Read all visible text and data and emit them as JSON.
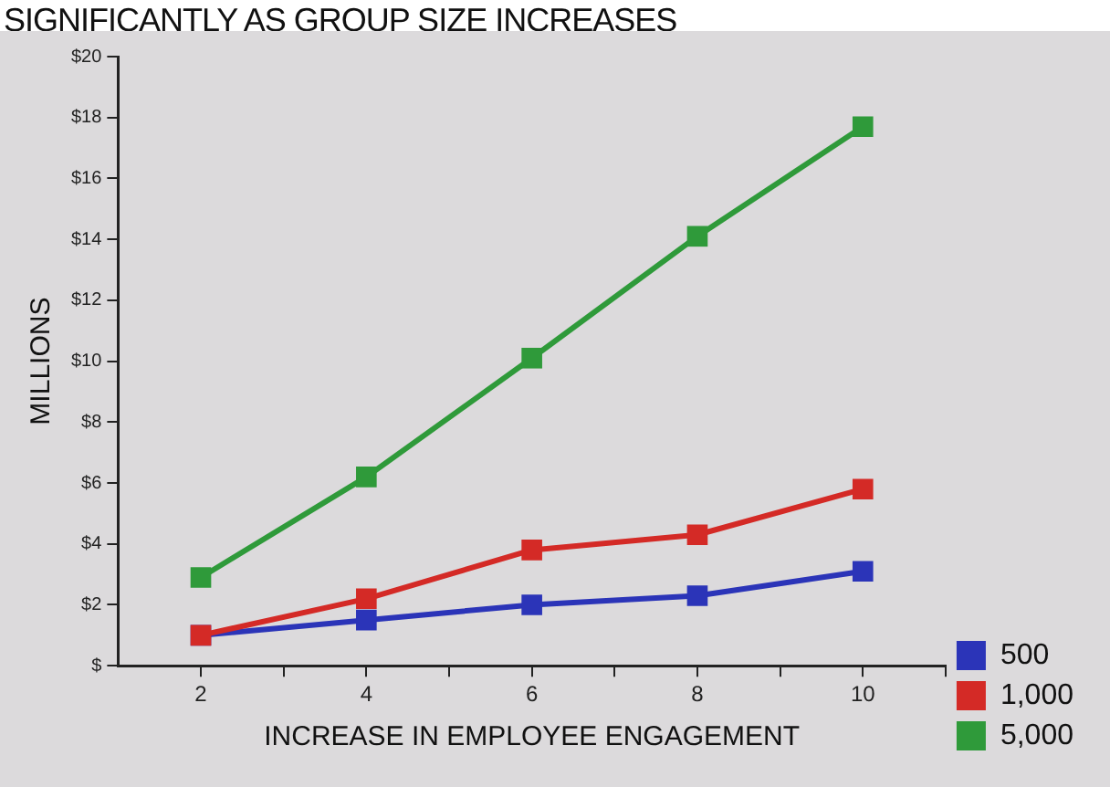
{
  "chart_data": {
    "type": "line",
    "title": "SIGNIFICANTLY AS GROUP SIZE INCREASES",
    "xlabel": "INCREASE IN EMPLOYEE ENGAGEMENT",
    "ylabel": "MILLIONS",
    "x": [
      2,
      4,
      6,
      8,
      10
    ],
    "series": [
      {
        "name": "500",
        "color": "#2b34b8",
        "values": [
          1.0,
          1.5,
          2.0,
          2.3,
          3.1
        ]
      },
      {
        "name": "1,000",
        "color": "#d42a26",
        "values": [
          1.0,
          2.2,
          3.8,
          4.3,
          5.8
        ]
      },
      {
        "name": "5,000",
        "color": "#2f9a3a",
        "values": [
          2.9,
          6.2,
          10.1,
          14.1,
          17.7
        ]
      }
    ],
    "xlim": [
      1,
      11
    ],
    "xticks": [
      2,
      {
        "value": 3,
        "label": null
      },
      4,
      {
        "value": 5,
        "label": null
      },
      6,
      {
        "value": 7,
        "label": null
      },
      8,
      {
        "value": 9,
        "label": null
      },
      10,
      {
        "value": 11,
        "label": null
      }
    ],
    "ylim": [
      0,
      20
    ],
    "yticks": [
      {
        "value": 0,
        "label": "$"
      },
      {
        "value": 2,
        "label": "$2"
      },
      {
        "value": 4,
        "label": "$4"
      },
      {
        "value": 6,
        "label": "$6"
      },
      {
        "value": 8,
        "label": "$8"
      },
      {
        "value": 10,
        "label": "$10"
      },
      {
        "value": 12,
        "label": "$12"
      },
      {
        "value": 14,
        "label": "$14"
      },
      {
        "value": 16,
        "label": "$16"
      },
      {
        "value": 18,
        "label": "$18"
      },
      {
        "value": 20,
        "label": "$20"
      }
    ],
    "grid": false,
    "legend": "bottom right",
    "marker": "square",
    "line_style": "solid"
  }
}
